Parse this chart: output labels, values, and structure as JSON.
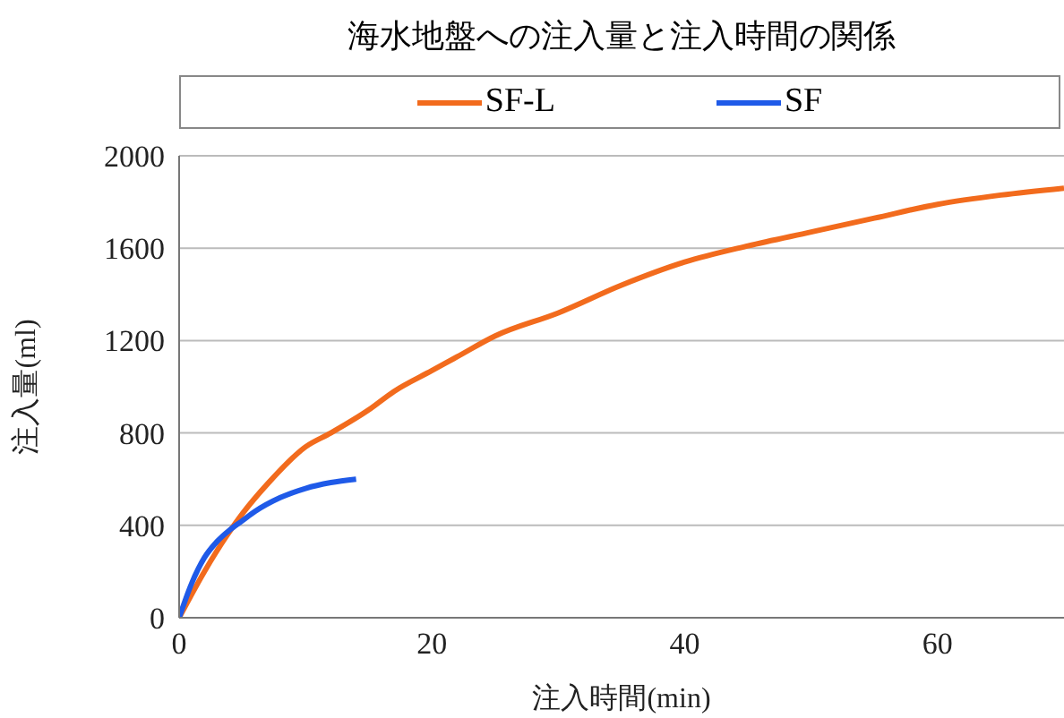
{
  "chart_data": {
    "type": "line",
    "title": "海水地盤への注入量と注入時間の関係",
    "xlabel": "注入時間(min)",
    "ylabel": "注入量(ml)",
    "xlim": [
      0,
      70
    ],
    "xticks": [
      0,
      20,
      40,
      60
    ],
    "ylim": [
      0,
      2000
    ],
    "yticks": [
      0,
      400,
      800,
      1200,
      1600,
      2000
    ],
    "grid": "y",
    "legend": "top",
    "marker": "none",
    "line_style": "solid",
    "series": [
      {
        "name": "SF-L",
        "color": "#f26b1d",
        "x": [
          0,
          2,
          5,
          7,
          10,
          12,
          15,
          17,
          20,
          22,
          25,
          30,
          35,
          40,
          45,
          50,
          55,
          60,
          65,
          70
        ],
        "values": [
          0,
          200,
          450,
          580,
          740,
          800,
          900,
          980,
          1070,
          1130,
          1220,
          1320,
          1440,
          1540,
          1610,
          1670,
          1730,
          1790,
          1830,
          1860
        ]
      },
      {
        "name": "SF",
        "color": "#1f5ae8",
        "x": [
          0,
          1,
          2,
          3,
          4,
          5,
          6,
          8,
          10,
          12,
          14
        ],
        "values": [
          0,
          150,
          260,
          330,
          380,
          420,
          460,
          520,
          560,
          585,
          600
        ]
      }
    ]
  }
}
